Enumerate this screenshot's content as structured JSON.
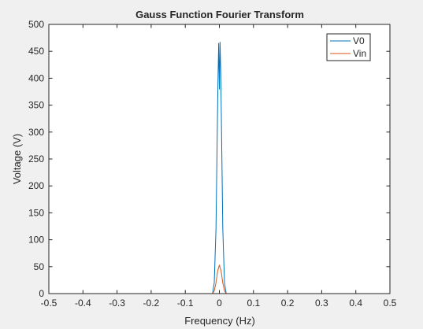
{
  "chart_data": {
    "type": "line",
    "title": "Gauss Function Fourier Transform",
    "xlabel": "Frequency (Hz)",
    "ylabel": "Voltage (V)",
    "xlim": [
      -0.5,
      0.5
    ],
    "ylim": [
      0,
      500
    ],
    "x_ticks": [
      -0.5,
      -0.4,
      -0.3,
      -0.2,
      -0.1,
      0,
      0.1,
      0.2,
      0.3,
      0.4,
      0.5
    ],
    "x_tick_labels": [
      "-0.5",
      "-0.4",
      "-0.3",
      "-0.2",
      "-0.1",
      "0",
      "0.1",
      "0.2",
      "0.3",
      "0.4",
      "0.5"
    ],
    "y_ticks": [
      0,
      50,
      100,
      150,
      200,
      250,
      300,
      350,
      400,
      450,
      500
    ],
    "y_tick_labels": [
      "0",
      "50",
      "100",
      "150",
      "200",
      "250",
      "300",
      "350",
      "400",
      "450",
      "500"
    ],
    "grid": false,
    "legend_position": "top-right",
    "series": [
      {
        "name": "V0",
        "color": "#0072BD",
        "x": [
          -0.5,
          -0.02,
          -0.015,
          -0.01,
          -0.007,
          -0.004,
          -0.002,
          0,
          0.002,
          0.004,
          0.007,
          0.01,
          0.015,
          0.02,
          0.5
        ],
        "y": [
          0,
          0,
          20,
          120,
          260,
          400,
          465,
          380,
          467,
          410,
          270,
          120,
          20,
          0,
          0
        ]
      },
      {
        "name": "Vin",
        "color": "#D95319",
        "x": [
          -0.5,
          -0.02,
          -0.015,
          -0.01,
          -0.005,
          0,
          0.005,
          0.01,
          0.015,
          0.02,
          0.5
        ],
        "y": [
          0,
          0,
          5,
          20,
          42,
          53,
          42,
          20,
          5,
          0,
          0
        ]
      }
    ]
  }
}
